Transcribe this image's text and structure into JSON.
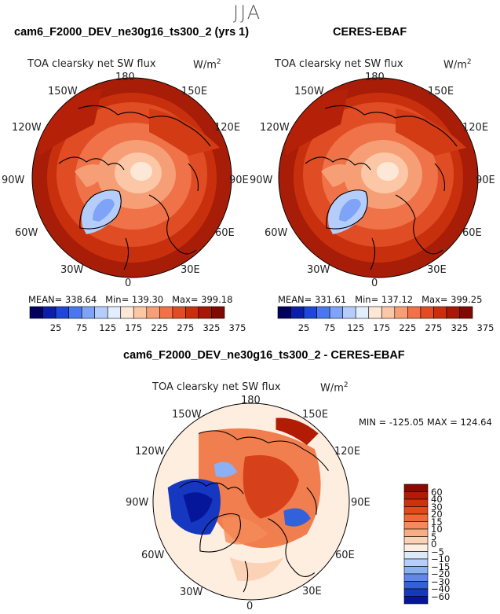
{
  "page_title": "JJA",
  "panels": [
    {
      "header": "cam6_F2000_DEV_ne30g16_ts300_2 (yrs 1)",
      "plot_title": "TOA clearsky net SW flux",
      "units": "W/m",
      "units_sup": "2",
      "stats": {
        "mean_label": "MEAN=",
        "mean": "338.64",
        "min_label": "Min=",
        "min": "139.30",
        "max_label": "Max=",
        "max": "399.18"
      }
    },
    {
      "header": "CERES-EBAF",
      "plot_title": "TOA clearsky net SW flux",
      "units": "W/m",
      "units_sup": "2",
      "stats": {
        "mean_label": "MEAN=",
        "mean": "331.61",
        "min_label": "Min=",
        "min": "137.12",
        "max_label": "Max=",
        "max": "399.25"
      }
    }
  ],
  "diff_panel": {
    "header": "cam6_F2000_DEV_ne30g16_ts300_2 - CERES-EBAF",
    "plot_title": "TOA clearsky net SW flux",
    "units": "W/m",
    "units_sup": "2",
    "minmax": "MIN = -125.05  MAX = 124.64"
  },
  "longitude_labels": [
    "180",
    "150E",
    "120E",
    "90E",
    "60E",
    "30E",
    "0",
    "30W",
    "60W",
    "90W",
    "120W",
    "150W"
  ],
  "colorbar_main": {
    "labels": [
      "25",
      "75",
      "125",
      "175",
      "225",
      "275",
      "325",
      "375"
    ],
    "colors": [
      "#00005e",
      "#0a1fa6",
      "#1f47d6",
      "#4a78ec",
      "#7fa3f6",
      "#b5cdfb",
      "#e3eefd",
      "#fde7d6",
      "#fbc7a6",
      "#f69f76",
      "#ef7248",
      "#e04c23",
      "#c8300d",
      "#a51906",
      "#7e0a02"
    ]
  },
  "colorbar_diff": {
    "labels": [
      "60",
      "40",
      "30",
      "20",
      "15",
      "10",
      "5",
      "0",
      "−5",
      "−10",
      "−15",
      "−20",
      "−30",
      "−40",
      "−60"
    ],
    "colors": [
      "#8b0a00",
      "#b21c05",
      "#cf310d",
      "#e24a1c",
      "#ee6a35",
      "#f58b58",
      "#f9ad83",
      "#fcd2b6",
      "#fdeee0",
      "#dce9fb",
      "#b7cff8",
      "#8bb0f3",
      "#5d8aea",
      "#3361db",
      "#1638c0",
      "#06169a"
    ]
  },
  "colors": {
    "title_gray": "#555555",
    "fill_dark": "#b02a0e",
    "ocean_mid": "#d8421c"
  }
}
